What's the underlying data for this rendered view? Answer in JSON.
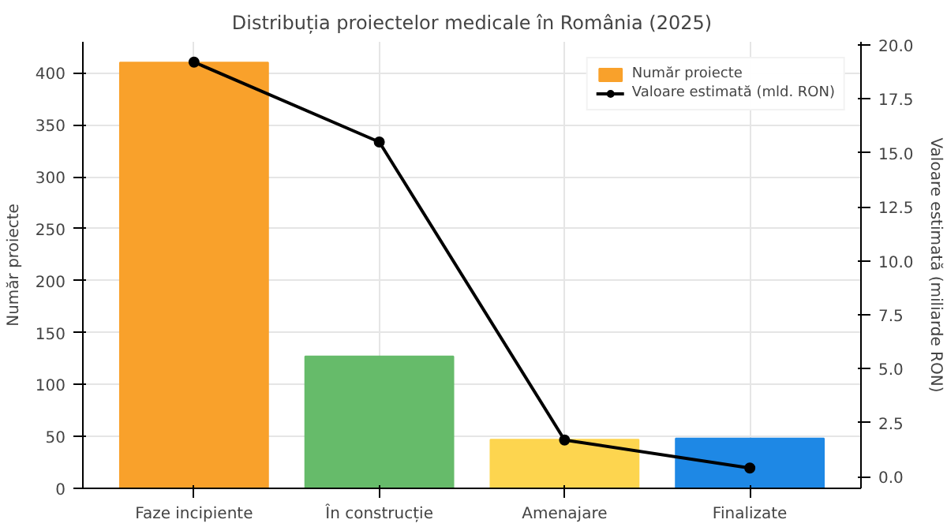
{
  "chart_data": {
    "type": "bar",
    "title": "Distribuția proiectelor medicale în România (2025)",
    "categories": [
      "Faze incipiente",
      "În construcție",
      "Amenajare",
      "Finalizate"
    ],
    "xlabel": null,
    "ylabel": "Număr proiecte",
    "y2label": "Valoare estimată (miliarde RON)",
    "series": [
      {
        "name": "Număr proiecte",
        "colors": [
          "#f9a12b",
          "#66bb6a",
          "#fdd54f",
          "#1e88e5"
        ],
        "values": [
          410,
          127,
          47,
          48
        ]
      },
      {
        "name": "Valoare estimată (mld. RON)",
        "type": "line",
        "axis": "y2",
        "color": "#000000",
        "marker": "circle",
        "values": [
          19.2,
          15.5,
          1.7,
          0.4
        ]
      }
    ],
    "ylim": [
      0,
      430
    ],
    "yticks": [
      0,
      50,
      100,
      150,
      200,
      250,
      300,
      350,
      400
    ],
    "y2lim": [
      -0.54,
      20.14
    ],
    "y2ticks": [
      {
        "value": 0,
        "label": "0.0"
      },
      2.5,
      {
        "value": 5,
        "label": "5.0"
      },
      7.5,
      {
        "value": 10,
        "label": "10.0"
      },
      12.5,
      {
        "value": 15,
        "label": "15.0"
      },
      17.5,
      {
        "value": 20,
        "label": "20.0"
      }
    ],
    "grid": true,
    "legend": "top right"
  }
}
